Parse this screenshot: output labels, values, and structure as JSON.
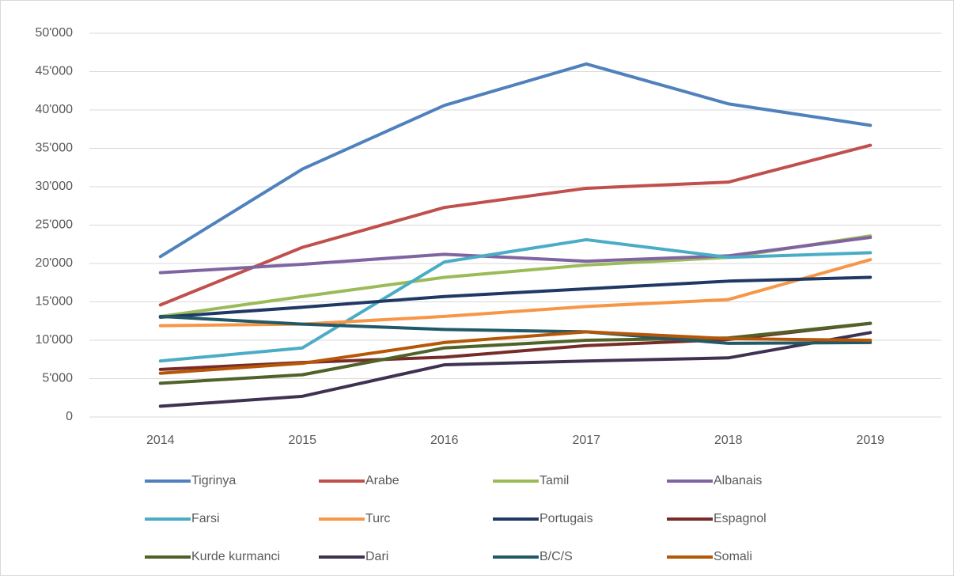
{
  "chart_data": {
    "type": "line",
    "categories": [
      "2014",
      "2015",
      "2016",
      "2017",
      "2018",
      "2019"
    ],
    "series": [
      {
        "name": "Tigrinya",
        "color": "#4f81bd",
        "values": [
          20900,
          32300,
          40600,
          46000,
          40800,
          38000
        ]
      },
      {
        "name": "Arabe",
        "color": "#c0504d",
        "values": [
          14600,
          22100,
          27300,
          29800,
          30600,
          35400
        ]
      },
      {
        "name": "Tamil",
        "color": "#9bbb59",
        "values": [
          13100,
          15700,
          18200,
          19800,
          20800,
          23600
        ]
      },
      {
        "name": "Albanais",
        "color": "#8064a2",
        "values": [
          18800,
          19900,
          21200,
          20300,
          21000,
          23400
        ]
      },
      {
        "name": "Farsi",
        "color": "#4bacc6",
        "values": [
          7300,
          9000,
          20200,
          23100,
          20800,
          21400
        ]
      },
      {
        "name": "Turc",
        "color": "#f79646",
        "values": [
          11900,
          12100,
          13100,
          14400,
          15300,
          20500
        ]
      },
      {
        "name": "Portugais",
        "color": "#1f3864",
        "values": [
          13000,
          14300,
          15700,
          16700,
          17700,
          18200
        ]
      },
      {
        "name": "Espagnol",
        "color": "#772c2a",
        "values": [
          6200,
          7100,
          7800,
          9300,
          10100,
          12200
        ]
      },
      {
        "name": "Kurde kurmanci",
        "color": "#4f6228",
        "values": [
          4400,
          5500,
          9000,
          10000,
          10300,
          12200
        ]
      },
      {
        "name": "Dari",
        "color": "#3f3151",
        "values": [
          1400,
          2700,
          6800,
          7300,
          7700,
          11000
        ]
      },
      {
        "name": "B/C/S",
        "color": "#215968",
        "values": [
          13100,
          12100,
          11400,
          11100,
          9600,
          9700
        ]
      },
      {
        "name": "Somali",
        "color": "#b65708",
        "values": [
          5700,
          7000,
          9700,
          11100,
          10200,
          10000
        ]
      }
    ],
    "ylim": [
      0,
      50000
    ],
    "yticks": [
      0,
      {
        "value": 5000,
        "label": "5'000"
      },
      {
        "value": 10000,
        "label": "10'000"
      },
      {
        "value": 15000,
        "label": "15'000"
      },
      {
        "value": 20000,
        "label": "20'000"
      },
      {
        "value": 25000,
        "label": "25'000"
      },
      {
        "value": 30000,
        "label": "30'000"
      },
      {
        "value": 35000,
        "label": "35'000"
      },
      {
        "value": 40000,
        "label": "40'000"
      },
      {
        "value": 45000,
        "label": "45'000"
      },
      {
        "value": 50000,
        "label": "50'000"
      }
    ],
    "grid": true,
    "legend": "bottom"
  }
}
